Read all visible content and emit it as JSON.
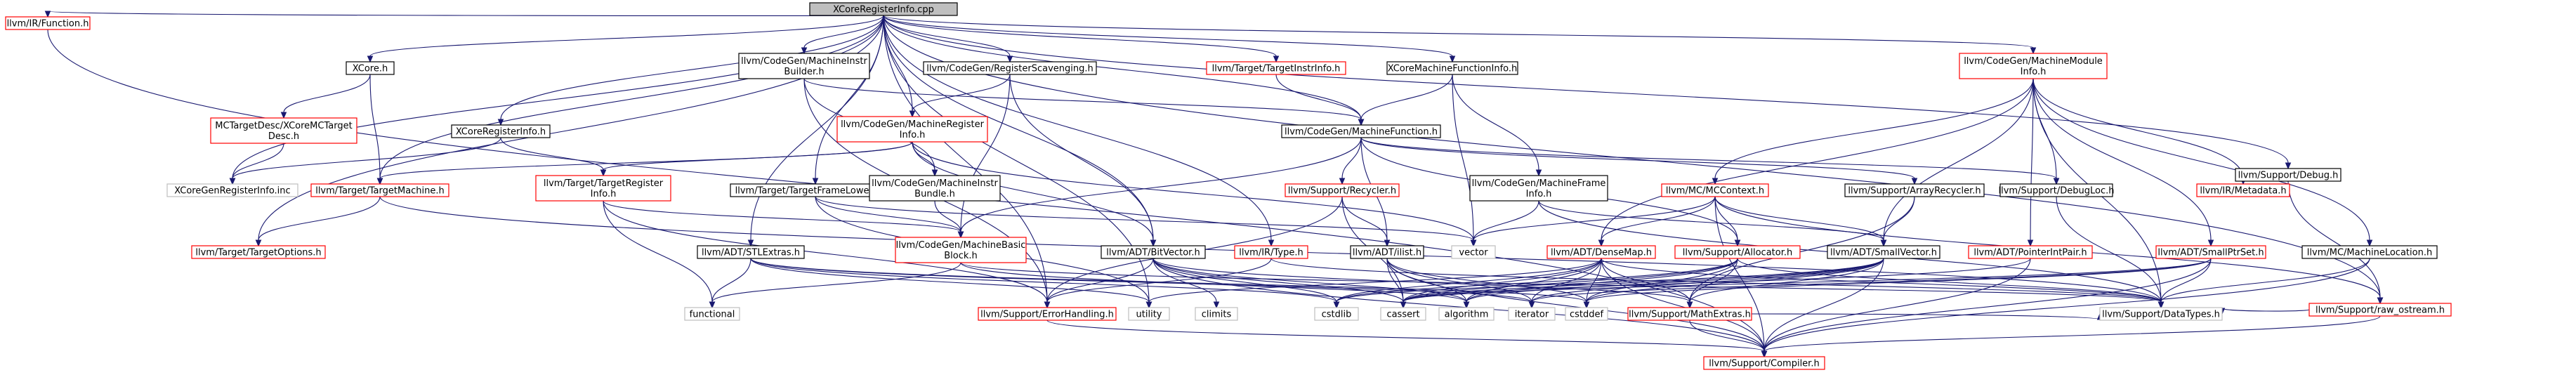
{
  "colors": {
    "edge": "#191970",
    "root_fill": "#bfbfbf",
    "red_border": "#ff0000",
    "black_border": "#000000",
    "system_border": "#bfbfbf"
  },
  "nodes": [
    {
      "id": "root",
      "label": "XCoreRegisterInfo.cpp",
      "style": "root"
    },
    {
      "id": "function_h",
      "label": "llvm/IR/Function.h",
      "style": "red"
    },
    {
      "id": "xcore_h",
      "label": "XCore.h",
      "style": "black"
    },
    {
      "id": "mcinstrbuilder",
      "label": [
        "llvm/CodeGen/MachineInstr",
        "Builder.h"
      ],
      "style": "black"
    },
    {
      "id": "regscavenging",
      "label": "llvm/CodeGen/RegisterScavenging.h",
      "style": "black"
    },
    {
      "id": "targetinstrinfo",
      "label": "llvm/Target/TargetInstrInfo.h",
      "style": "red"
    },
    {
      "id": "xcoremfi",
      "label": "XCoreMachineFunctionInfo.h",
      "style": "black"
    },
    {
      "id": "machinemodinfo",
      "label": [
        "llvm/CodeGen/MachineModule",
        "Info.h"
      ],
      "style": "red"
    },
    {
      "id": "debug_h",
      "label": "llvm/Support/Debug.h",
      "style": "black"
    },
    {
      "id": "mctargetdesc",
      "label": [
        "MCTargetDesc/XCoreMCTarget",
        "Desc.h"
      ],
      "style": "red"
    },
    {
      "id": "xcoreregisterinfo_h",
      "label": "XCoreRegisterInfo.h",
      "style": "black"
    },
    {
      "id": "machinereginfo",
      "label": [
        "llvm/CodeGen/MachineRegister",
        "Info.h"
      ],
      "style": "red"
    },
    {
      "id": "machinefunction",
      "label": "llvm/CodeGen/MachineFunction.h",
      "style": "black"
    },
    {
      "id": "genreginfo",
      "label": "XCoreGenRegisterInfo.inc",
      "style": "system"
    },
    {
      "id": "targetmachine",
      "label": "llvm/Target/TargetMachine.h",
      "style": "red"
    },
    {
      "id": "targetregister",
      "label": [
        "llvm/Target/TargetRegister",
        "Info.h"
      ],
      "style": "red"
    },
    {
      "id": "targetframelow",
      "label": "llvm/Target/TargetFrameLowering.h",
      "style": "black"
    },
    {
      "id": "machineinstrbundle",
      "label": [
        "llvm/CodeGen/MachineInstr",
        "Bundle.h"
      ],
      "style": "black"
    },
    {
      "id": "recycler",
      "label": "llvm/Support/Recycler.h",
      "style": "red"
    },
    {
      "id": "machineframeinfo",
      "label": [
        "llvm/CodeGen/MachineFrame",
        "Info.h"
      ],
      "style": "black"
    },
    {
      "id": "mccontext",
      "label": "llvm/MC/MCContext.h",
      "style": "red"
    },
    {
      "id": "arrayrecycler",
      "label": "llvm/Support/ArrayRecycler.h",
      "style": "black"
    },
    {
      "id": "debugloc",
      "label": "llvm/Support/DebugLoc.h",
      "style": "black"
    },
    {
      "id": "metadata",
      "label": "llvm/IR/Metadata.h",
      "style": "red"
    },
    {
      "id": "targetoptions",
      "label": "llvm/Target/TargetOptions.h",
      "style": "red"
    },
    {
      "id": "stlextras",
      "label": "llvm/ADT/STLExtras.h",
      "style": "black"
    },
    {
      "id": "machinebasicblock",
      "label": [
        "llvm/CodeGen/MachineBasic",
        "Block.h"
      ],
      "style": "red"
    },
    {
      "id": "bitvector",
      "label": "llvm/ADT/BitVector.h",
      "style": "black"
    },
    {
      "id": "type_h",
      "label": "llvm/IR/Type.h",
      "style": "red"
    },
    {
      "id": "ilist",
      "label": "llvm/ADT/ilist.h",
      "style": "black"
    },
    {
      "id": "vector",
      "label": "vector",
      "style": "system"
    },
    {
      "id": "densemap",
      "label": "llvm/ADT/DenseMap.h",
      "style": "red"
    },
    {
      "id": "allocator",
      "label": "llvm/Support/Allocator.h",
      "style": "red"
    },
    {
      "id": "smallvector",
      "label": "llvm/ADT/SmallVector.h",
      "style": "black"
    },
    {
      "id": "pointerintpair",
      "label": "llvm/ADT/PointerIntPair.h",
      "style": "red"
    },
    {
      "id": "smallptrset",
      "label": "llvm/ADT/SmallPtrSet.h",
      "style": "red"
    },
    {
      "id": "machinelocation",
      "label": "llvm/MC/MachineLocation.h",
      "style": "black"
    },
    {
      "id": "raw_ostream",
      "label": "llvm/Support/raw_ostream.h",
      "style": "red"
    },
    {
      "id": "functional",
      "label": "functional",
      "style": "system"
    },
    {
      "id": "errorhandling",
      "label": "llvm/Support/ErrorHandling.h",
      "style": "red"
    },
    {
      "id": "utility",
      "label": "utility",
      "style": "system"
    },
    {
      "id": "climits",
      "label": "climits",
      "style": "system"
    },
    {
      "id": "cstdlib",
      "label": "cstdlib",
      "style": "system"
    },
    {
      "id": "cassert",
      "label": "cassert",
      "style": "system"
    },
    {
      "id": "algorithm",
      "label": "algorithm",
      "style": "system"
    },
    {
      "id": "iterator",
      "label": "iterator",
      "style": "system"
    },
    {
      "id": "cstddef",
      "label": "cstddef",
      "style": "system"
    },
    {
      "id": "mathextras",
      "label": "llvm/Support/MathExtras.h",
      "style": "red"
    },
    {
      "id": "datatypes",
      "label": "llvm/Support/DataTypes.h",
      "style": "system"
    },
    {
      "id": "compiler",
      "label": "llvm/Support/Compiler.h",
      "style": "red"
    }
  ],
  "edges": [
    [
      "root",
      "function_h"
    ],
    [
      "root",
      "xcore_h"
    ],
    [
      "root",
      "mcinstrbuilder"
    ],
    [
      "root",
      "regscavenging"
    ],
    [
      "root",
      "targetinstrinfo"
    ],
    [
      "root",
      "xcoremfi"
    ],
    [
      "root",
      "machinemodinfo"
    ],
    [
      "root",
      "debug_h"
    ],
    [
      "root",
      "raw_ostream"
    ],
    [
      "root",
      "xcoreregisterinfo_h"
    ],
    [
      "root",
      "genreginfo"
    ],
    [
      "root",
      "targetmachine"
    ],
    [
      "root",
      "targetoptions"
    ],
    [
      "root",
      "targetframelow"
    ],
    [
      "root",
      "machinefunction"
    ],
    [
      "root",
      "bitvector"
    ],
    [
      "root",
      "type_h"
    ],
    [
      "root",
      "errorhandling"
    ],
    [
      "root",
      "stlextras"
    ],
    [
      "root",
      "machinereginfo"
    ],
    [
      "root",
      "utility"
    ],
    [
      "function_h",
      "compiler"
    ],
    [
      "xcore_h",
      "mctargetdesc"
    ],
    [
      "xcore_h",
      "targetmachine"
    ],
    [
      "mctargetdesc",
      "genreginfo"
    ],
    [
      "xcoreregisterinfo_h",
      "genreginfo"
    ],
    [
      "xcoreregisterinfo_h",
      "targetregister"
    ],
    [
      "mcinstrbuilder",
      "machinefunction"
    ],
    [
      "mcinstrbuilder",
      "machineinstrbundle"
    ],
    [
      "mcinstrbuilder",
      "errorhandling"
    ],
    [
      "regscavenging",
      "bitvector"
    ],
    [
      "regscavenging",
      "machinebasicblock"
    ],
    [
      "regscavenging",
      "machinereginfo"
    ],
    [
      "targetinstrinfo",
      "machinefunction"
    ],
    [
      "xcoremfi",
      "machinefunction"
    ],
    [
      "xcoremfi",
      "vector"
    ],
    [
      "xcoremfi",
      "machineframeinfo"
    ],
    [
      "machinemodinfo",
      "mccontext"
    ],
    [
      "machinemodinfo",
      "metadata"
    ],
    [
      "machinemodinfo",
      "debugloc"
    ],
    [
      "machinemodinfo",
      "smallvector"
    ],
    [
      "machinemodinfo",
      "smallptrset"
    ],
    [
      "machinemodinfo",
      "pointerintpair"
    ],
    [
      "machinemodinfo",
      "machinelocation"
    ],
    [
      "machinemodinfo",
      "datatypes"
    ],
    [
      "machinemodinfo",
      "densemap"
    ],
    [
      "debug_h",
      "raw_ostream"
    ],
    [
      "machinereginfo",
      "targetregister"
    ],
    [
      "machinereginfo",
      "machineinstrbundle"
    ],
    [
      "machinereginfo",
      "bitvector"
    ],
    [
      "machinereginfo",
      "vector"
    ],
    [
      "machinereginfo",
      "targetmachine"
    ],
    [
      "machinefunction",
      "machinebasicblock"
    ],
    [
      "machinefunction",
      "recycler"
    ],
    [
      "machinefunction",
      "arrayrecycler"
    ],
    [
      "machinefunction",
      "debugloc"
    ],
    [
      "machinefunction",
      "ilist"
    ],
    [
      "machinefunction",
      "allocator"
    ],
    [
      "targetmachine",
      "targetoptions"
    ],
    [
      "targetmachine",
      "datatypes"
    ],
    [
      "targetregister",
      "machinebasicblock"
    ],
    [
      "targetregister",
      "functional"
    ],
    [
      "targetregister",
      "errorhandling"
    ],
    [
      "targetframelow",
      "machinebasicblock"
    ],
    [
      "targetframelow",
      "utility"
    ],
    [
      "targetframelow",
      "vector"
    ],
    [
      "machineinstrbundle",
      "machinebasicblock"
    ],
    [
      "recycler",
      "ilist"
    ],
    [
      "recycler",
      "errorhandling"
    ],
    [
      "recycler",
      "cassert"
    ],
    [
      "machineframeinfo",
      "vector"
    ],
    [
      "machineframeinfo",
      "smallvector"
    ],
    [
      "machineframeinfo",
      "datatypes"
    ],
    [
      "mccontext",
      "densemap"
    ],
    [
      "mccontext",
      "allocator"
    ],
    [
      "mccontext",
      "smallvector"
    ],
    [
      "mccontext",
      "raw_ostream"
    ],
    [
      "mccontext",
      "vector"
    ],
    [
      "mccontext",
      "compiler"
    ],
    [
      "arrayrecycler",
      "smallvector"
    ],
    [
      "arrayrecycler",
      "mathextras"
    ],
    [
      "debugloc",
      "datatypes"
    ],
    [
      "stlextras",
      "functional"
    ],
    [
      "stlextras",
      "utility"
    ],
    [
      "stlextras",
      "cstddef"
    ],
    [
      "stlextras",
      "iterator"
    ],
    [
      "stlextras",
      "cstdlib"
    ],
    [
      "machinebasicblock",
      "functional"
    ],
    [
      "machinebasicblock",
      "datatypes"
    ],
    [
      "machinebasicblock",
      "algorithm"
    ],
    [
      "bitvector",
      "cassert"
    ],
    [
      "bitvector",
      "climits"
    ],
    [
      "bitvector",
      "cstdlib"
    ],
    [
      "bitvector",
      "algorithm"
    ],
    [
      "bitvector",
      "errorhandling"
    ],
    [
      "bitvector",
      "mathextras"
    ],
    [
      "bitvector",
      "compiler"
    ],
    [
      "type_h",
      "datatypes"
    ],
    [
      "type_h",
      "errorhandling"
    ],
    [
      "ilist",
      "cassert"
    ],
    [
      "ilist",
      "cstddef"
    ],
    [
      "ilist",
      "iterator"
    ],
    [
      "ilist",
      "algorithm"
    ],
    [
      "ilist",
      "compiler"
    ],
    [
      "densemap",
      "mathextras"
    ],
    [
      "densemap",
      "cassert"
    ],
    [
      "densemap",
      "algorithm"
    ],
    [
      "densemap",
      "utility"
    ],
    [
      "densemap",
      "iterator"
    ],
    [
      "densemap",
      "cstddef"
    ],
    [
      "densemap",
      "datatypes"
    ],
    [
      "densemap",
      "compiler"
    ],
    [
      "densemap",
      "cstdlib"
    ],
    [
      "allocator",
      "mathextras"
    ],
    [
      "allocator",
      "cstddef"
    ],
    [
      "allocator",
      "cassert"
    ],
    [
      "allocator",
      "datatypes"
    ],
    [
      "allocator",
      "algorithm"
    ],
    [
      "allocator",
      "cstdlib"
    ],
    [
      "smallvector",
      "mathextras"
    ],
    [
      "smallvector",
      "cassert"
    ],
    [
      "smallvector",
      "algorithm"
    ],
    [
      "smallvector",
      "iterator"
    ],
    [
      "smallvector",
      "cstddef"
    ],
    [
      "smallvector",
      "cstdlib"
    ],
    [
      "smallvector",
      "compiler"
    ],
    [
      "pointerintpair",
      "compiler"
    ],
    [
      "pointerintpair",
      "cassert"
    ],
    [
      "smallptrset",
      "compiler"
    ],
    [
      "smallptrset",
      "datatypes"
    ],
    [
      "smallptrset",
      "cassert"
    ],
    [
      "smallptrset",
      "cstddef"
    ],
    [
      "smallptrset",
      "iterator"
    ],
    [
      "machinelocation",
      "datatypes"
    ],
    [
      "machinelocation",
      "compiler"
    ],
    [
      "raw_ostream",
      "compiler"
    ],
    [
      "raw_ostream",
      "datatypes"
    ],
    [
      "errorhandling",
      "compiler"
    ],
    [
      "mathextras",
      "compiler"
    ],
    [
      "mathextras",
      "datatypes"
    ]
  ]
}
